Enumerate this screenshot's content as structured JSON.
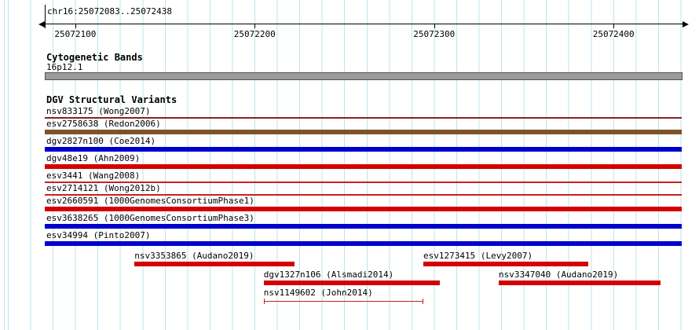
{
  "header": {
    "region_label": "chr16:25072083..25072438"
  },
  "cytobands": {
    "title": "Cytogenetic Bands",
    "band": "16p12.1",
    "bar_color": "#9c9c9c",
    "bar_border": "#515151"
  },
  "dgv": {
    "title": "DGV Structural Variants"
  },
  "colors": {
    "grid": "#bee3ef",
    "red": "#d40000",
    "blue": "#0000cd",
    "brown": "#7d5327",
    "darkred": "#8b2020",
    "thin_red": "#c52222",
    "axis": "#000000"
  },
  "chart_data": {
    "type": "genome-tracks",
    "title": "DGV Structural Variants",
    "region": {
      "chromosome": "chr16",
      "start": 25072083,
      "end": 25072438
    },
    "axis": {
      "ticks": [
        25072100,
        25072200,
        25072300,
        25072400
      ],
      "tick_labels": [
        "25072100",
        "25072200",
        "25072300",
        "25072400"
      ]
    },
    "cytoband": {
      "name": "16p12.1",
      "start": 25072083,
      "end": 25072438
    },
    "tracks": [
      {
        "row": 0,
        "id": "nsv833175",
        "study": "Wong2007",
        "label": "nsv833175 (Wong2007)",
        "start": 25072083,
        "end": 25072438,
        "spans_region": true,
        "shape": "line",
        "color": "darkred"
      },
      {
        "row": 1,
        "id": "esv2758638",
        "study": "Redon2006",
        "label": "esv2758638 (Redon2006)",
        "start": 25072083,
        "end": 25072438,
        "spans_region": true,
        "shape": "bar",
        "color": "brown"
      },
      {
        "row": 2,
        "id": "dgv2827n100",
        "study": "Coe2014",
        "label": "dgv2827n100 (Coe2014)",
        "start": 25072083,
        "end": 25072438,
        "spans_region": true,
        "shape": "bar",
        "color": "blue"
      },
      {
        "row": 3,
        "id": "dgv48e19",
        "study": "Ahn2009",
        "label": "dgv48e19 (Ahn2009)",
        "start": 25072083,
        "end": 25072438,
        "spans_region": true,
        "shape": "bar",
        "color": "red"
      },
      {
        "row": 4,
        "id": "esv3441",
        "study": "Wang2008",
        "label": "esv3441 (Wang2008)",
        "start": 25072083,
        "end": 25072438,
        "spans_region": true,
        "shape": "line",
        "color": "thin_red"
      },
      {
        "row": 5,
        "id": "esv2714121",
        "study": "Wong2012b",
        "label": "esv2714121 (Wong2012b)",
        "start": 25072083,
        "end": 25072438,
        "spans_region": true,
        "shape": "line",
        "color": "thin_red"
      },
      {
        "row": 6,
        "id": "esv2660591",
        "study": "1000GenomesConsortiumPhase1",
        "label": "esv2660591 (1000GenomesConsortiumPhase1)",
        "start": 25072083,
        "end": 25072438,
        "spans_region": true,
        "shape": "bar",
        "color": "red"
      },
      {
        "row": 7,
        "id": "esv3638265",
        "study": "1000GenomesConsortiumPhase3",
        "label": "esv3638265 (1000GenomesConsortiumPhase3)",
        "start": 25072083,
        "end": 25072438,
        "spans_region": true,
        "shape": "bar",
        "color": "blue"
      },
      {
        "row": 8,
        "id": "esv34994",
        "study": "Pinto2007",
        "label": "esv34994 (Pinto2007)",
        "start": 25072083,
        "end": 25072438,
        "spans_region": true,
        "shape": "bar",
        "color": "blue"
      },
      {
        "row": 9,
        "id": "nsv3353865",
        "study": "Audano2019",
        "label": "nsv3353865 (Audano2019)",
        "start": 25072133,
        "end": 25072222,
        "spans_region": false,
        "shape": "bar",
        "color": "red"
      },
      {
        "row": 9,
        "id": "esv1273415",
        "study": "Levy2007",
        "label": "esv1273415 (Levy2007)",
        "start": 25072294,
        "end": 25072386,
        "spans_region": false,
        "shape": "bar",
        "color": "red"
      },
      {
        "row": 10,
        "id": "dgv1327n106",
        "study": "Alsmadi2014",
        "label": "dgv1327n106 (Alsmadi2014)",
        "start": 25072205,
        "end": 25072303,
        "spans_region": false,
        "shape": "bar",
        "color": "red"
      },
      {
        "row": 10,
        "id": "nsv3347040",
        "study": "Audano2019",
        "label": "nsv3347040 (Audano2019)",
        "start": 25072336,
        "end": 25072426,
        "spans_region": false,
        "shape": "bar",
        "color": "red"
      },
      {
        "row": 11,
        "id": "nsv1149602",
        "study": "John2014",
        "label": "nsv1149602 (John2014)",
        "start": 25072205,
        "end": 25072294,
        "spans_region": false,
        "shape": "bracket",
        "color": "thin_red"
      }
    ]
  }
}
